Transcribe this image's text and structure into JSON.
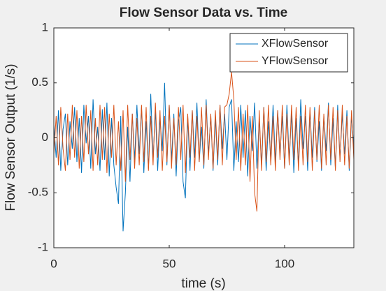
{
  "chart_data": {
    "type": "line",
    "title": "Flow Sensor Data vs. Time",
    "xlabel": "time (s)",
    "ylabel": "Flow Sensor Output (1/s)",
    "xlim": [
      0,
      130
    ],
    "xticks": [
      0,
      50,
      100
    ],
    "ylim": [
      -1,
      1
    ],
    "yticks": [
      -1,
      -0.5,
      0,
      0.5,
      1
    ],
    "legend": "northeast",
    "x": [
      0,
      1,
      2,
      3,
      4,
      5,
      6,
      7,
      8,
      9,
      10,
      11,
      12,
      13,
      14,
      15,
      16,
      17,
      18,
      19,
      20,
      21,
      22,
      23,
      24,
      25,
      26,
      27,
      28,
      29,
      30,
      31,
      32,
      33,
      34,
      35,
      36,
      37,
      38,
      39,
      40,
      41,
      42,
      43,
      44,
      45,
      46,
      47,
      48,
      49,
      50,
      51,
      52,
      53,
      54,
      55,
      56,
      57,
      58,
      59,
      60,
      61,
      62,
      63,
      64,
      65,
      66,
      67,
      68,
      69,
      70,
      71,
      72,
      73,
      74,
      75,
      76,
      77,
      78,
      79,
      80,
      81,
      82,
      83,
      84,
      85,
      86,
      87,
      88,
      89,
      90,
      91,
      92,
      93,
      94,
      95,
      96,
      97,
      98,
      99,
      100,
      101,
      102,
      103,
      104,
      105,
      106,
      107,
      108,
      109,
      110,
      111,
      112,
      113,
      114,
      115,
      116,
      117,
      118,
      119,
      120,
      121,
      122,
      123,
      124,
      125,
      126,
      127,
      128,
      129,
      130
    ],
    "series": [
      {
        "name": "XFlowSensor",
        "color": "#0072bd",
        "values": [
          0.12,
          -0.18,
          0.25,
          -0.3,
          0.08,
          0.22,
          -0.25,
          0.15,
          -0.1,
          0.28,
          -0.22,
          0.18,
          -0.32,
          0.3,
          -0.05,
          0.2,
          -0.28,
          0.35,
          -0.15,
          0.1,
          -0.3,
          0.26,
          -0.2,
          0.32,
          -0.35,
          0.18,
          -0.25,
          -0.45,
          -0.6,
          0.2,
          -0.85,
          -0.5,
          0.1,
          -0.4,
          0.22,
          -0.2,
          0.3,
          -0.15,
          0.28,
          -0.32,
          0.15,
          -0.28,
          0.4,
          -0.2,
          0.25,
          -0.3,
          0.18,
          -0.12,
          0.5,
          -0.25,
          0.3,
          -0.2,
          0.22,
          -0.35,
          0.15,
          0.28,
          -0.4,
          -0.55,
          0.2,
          -0.3,
          0.25,
          -0.18,
          0.32,
          -0.22,
          0.1,
          -0.28,
          0.35,
          -0.15,
          0.2,
          -0.3,
          0.18,
          -0.25,
          0.3,
          -0.1,
          0.22,
          -0.2,
          0.28,
          0.35,
          -0.3,
          0.15,
          -0.22,
          0.3,
          -0.18,
          0.25,
          -0.35,
          0.2,
          -0.12,
          0.32,
          -0.28,
          0.18,
          -0.25,
          0.28,
          -0.3,
          0.15,
          -0.2,
          0.3,
          -0.22,
          0.25,
          -0.15,
          0.2,
          -0.28,
          0.3,
          -0.2,
          0.22,
          -0.32,
          0.18,
          -0.25,
          0.35,
          -0.1,
          0.2,
          -0.3,
          0.25,
          -0.18,
          0.28,
          -0.22,
          0.15,
          -0.3,
          0.2,
          -0.12,
          0.32,
          -0.25,
          0.18,
          -0.28,
          0.3,
          -0.2,
          0.22,
          -0.15,
          0.25,
          -0.3,
          0.2,
          -0.1
        ]
      },
      {
        "name": "YFlowSensor",
        "color": "#d95319",
        "values": [
          -0.15,
          0.2,
          -0.25,
          0.28,
          -0.1,
          -0.3,
          0.22,
          -0.2,
          0.3,
          -0.18,
          0.25,
          -0.28,
          0.2,
          -0.22,
          0.3,
          -0.15,
          0.25,
          -0.3,
          0.18,
          -0.25,
          0.3,
          -0.2,
          0.28,
          -0.32,
          0.22,
          -0.18,
          0.3,
          -0.25,
          0.15,
          -0.3,
          0.25,
          -0.4,
          0.3,
          -0.2,
          0.22,
          -0.28,
          0.18,
          -0.25,
          0.3,
          -0.22,
          0.28,
          -0.3,
          0.2,
          -0.25,
          0.32,
          -0.18,
          0.25,
          -0.3,
          0.2,
          -0.22,
          0.3,
          -0.28,
          0.18,
          -0.25,
          0.28,
          -0.2,
          0.3,
          -0.32,
          0.22,
          -0.18,
          0.25,
          -0.3,
          0.2,
          -0.22,
          0.28,
          -0.25,
          0.3,
          -0.2,
          0.22,
          -0.28,
          0.25,
          -0.2,
          0.3,
          -0.25,
          0.28,
          0.3,
          0.4,
          0.6,
          0.35,
          -0.2,
          0.28,
          -0.3,
          0.22,
          -0.25,
          0.3,
          -0.4,
          0.2,
          -0.5,
          -0.67,
          0.25,
          -0.3,
          0.28,
          -0.22,
          0.3,
          -0.25,
          0.2,
          -0.3,
          0.25,
          -0.2,
          0.3,
          -0.28,
          0.22,
          -0.25,
          0.3,
          -0.2,
          0.28,
          -0.3,
          0.2,
          -0.25,
          0.3,
          -0.22,
          0.28,
          -0.3,
          0.25,
          -0.2,
          0.3,
          -0.28,
          0.22,
          -0.25,
          0.3,
          -0.2,
          0.28,
          -0.3,
          0.25,
          -0.22,
          0.3,
          -0.25,
          0.2,
          -0.28,
          0.25,
          -0.2
        ]
      }
    ]
  }
}
